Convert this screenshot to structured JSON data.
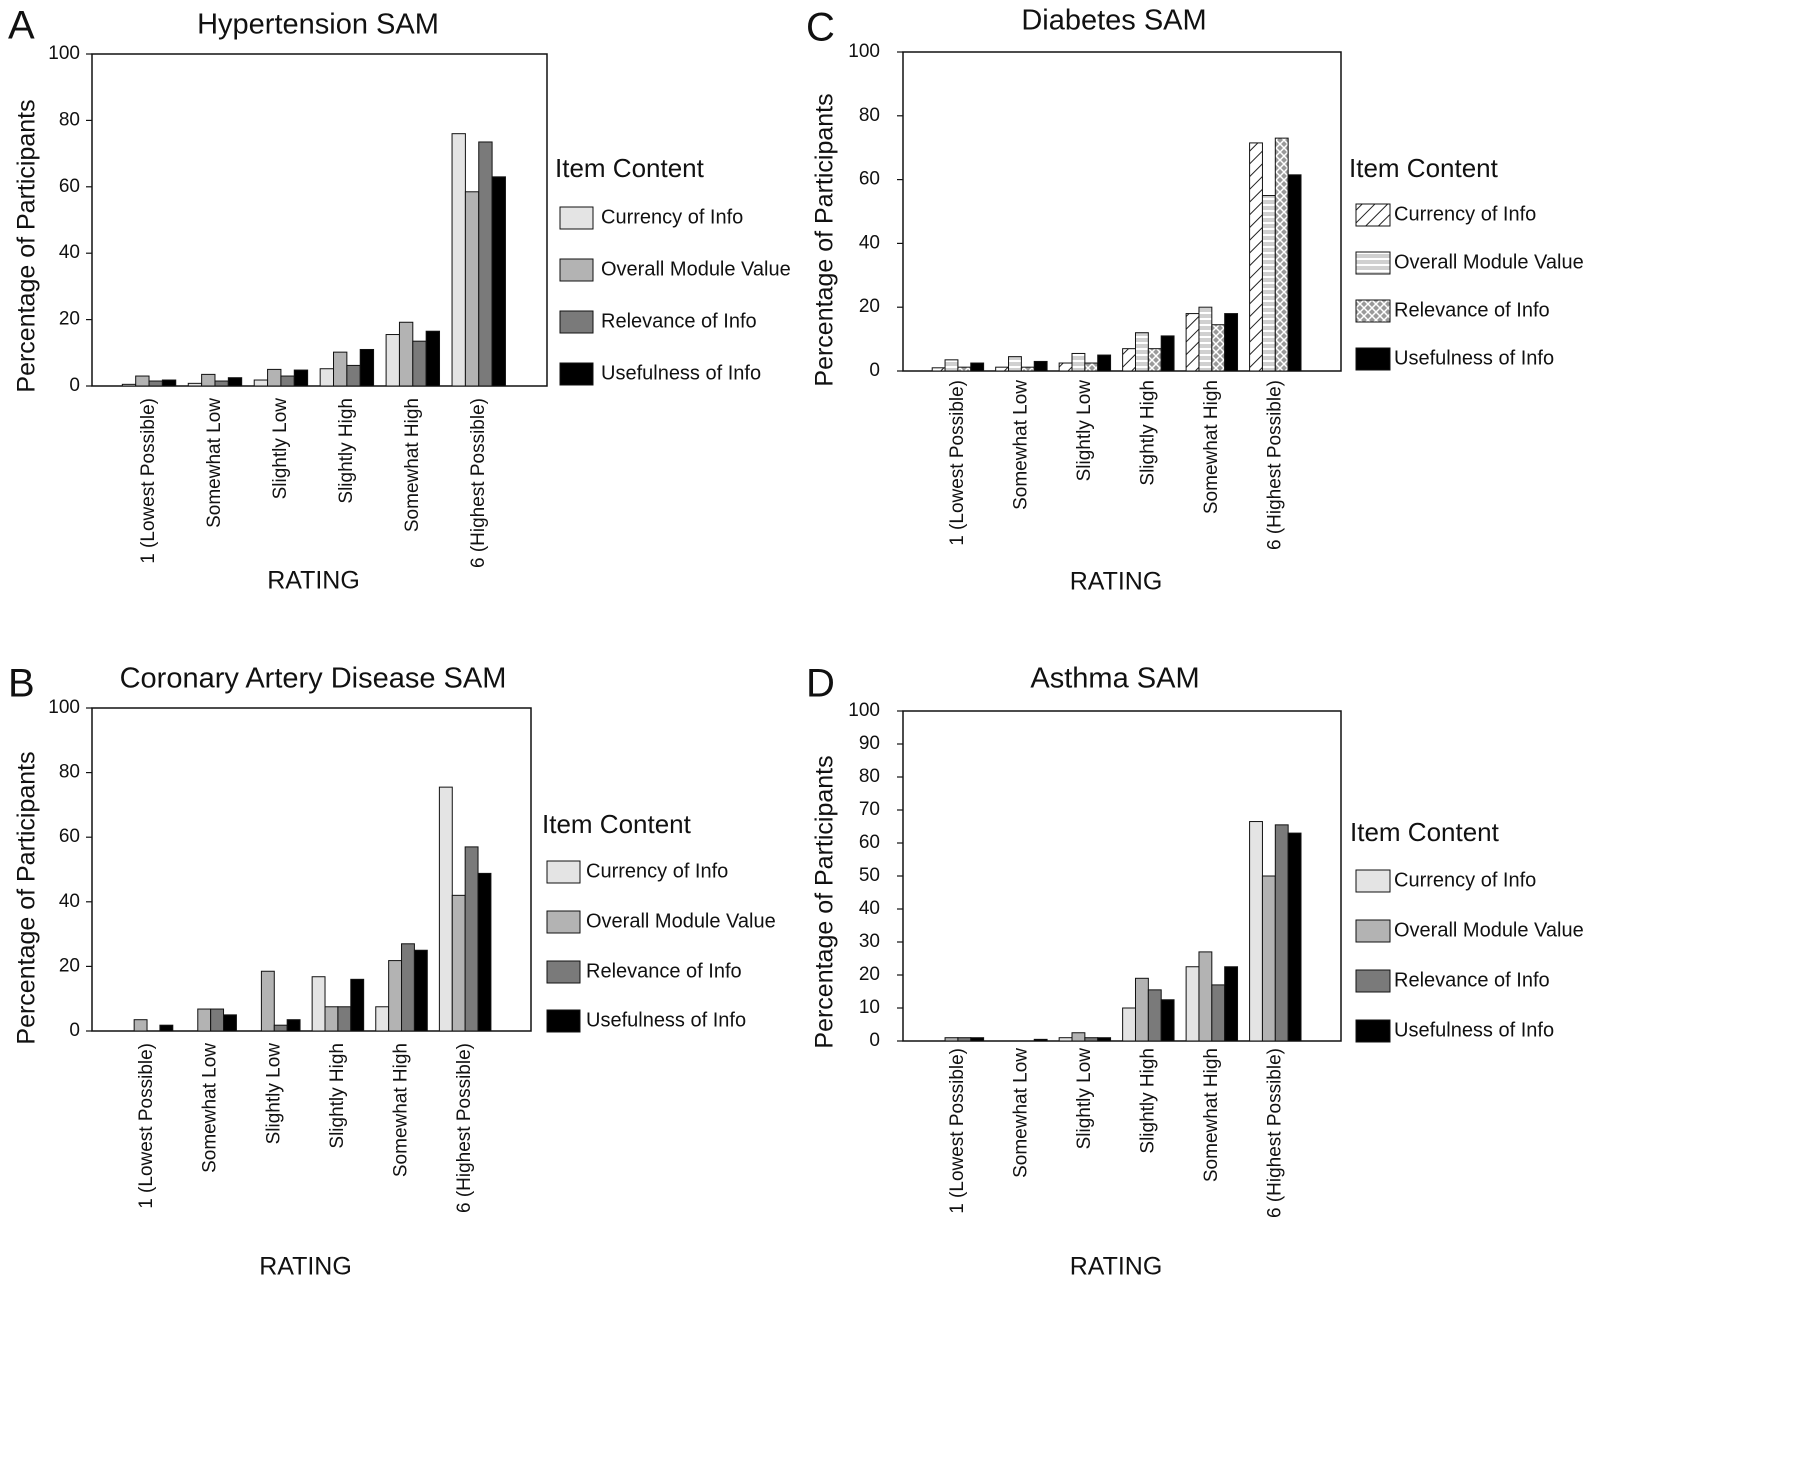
{
  "legend_title": "Item Content",
  "colors": {
    "Currency of Info": "#e4e4e4",
    "Overall Module Value": "#b3b3b3",
    "Relevance of Info": "#7a7a7a",
    "Usefulness of Info": "#000000"
  },
  "chart_data": [
    {
      "panel": "A",
      "type": "bar",
      "title": "Hypertension SAM",
      "xlabel": "RATING",
      "ylabel": "Percentage of Participants",
      "ylim": [
        0,
        100
      ],
      "yticks": [
        0,
        20,
        40,
        60,
        80,
        100
      ],
      "legend_title": "Item Content",
      "legend_position": "right",
      "grid": false,
      "categories": [
        "1 (Lowest Possible)",
        "Somewhat Low",
        "Slightly Low",
        "Slightly High",
        "Somewhat High",
        "6 (Highest Possible)"
      ],
      "series": [
        {
          "name": "Currency of Info",
          "pattern": "solid",
          "values": [
            0.5,
            0.8,
            1.8,
            5.2,
            15.5,
            76.0
          ]
        },
        {
          "name": "Overall Module Value",
          "pattern": "solid",
          "values": [
            3.0,
            3.5,
            5.0,
            10.2,
            19.2,
            58.5
          ]
        },
        {
          "name": "Relevance of Info",
          "pattern": "solid",
          "values": [
            1.5,
            1.5,
            3.0,
            6.2,
            13.5,
            73.5
          ]
        },
        {
          "name": "Usefulness of Info",
          "pattern": "solid",
          "values": [
            1.8,
            2.5,
            4.8,
            11.0,
            16.5,
            63.0
          ]
        }
      ]
    },
    {
      "panel": "B",
      "type": "bar",
      "title": "Coronary Artery Disease SAM",
      "xlabel": "RATING",
      "ylabel": "Percentage of Participants",
      "ylim": [
        0,
        100
      ],
      "yticks": [
        0,
        20,
        40,
        60,
        80,
        100
      ],
      "legend_title": "Item Content",
      "legend_position": "right",
      "grid": false,
      "categories": [
        "1 (Lowest Possible)",
        "Somewhat Low",
        "Slightly Low",
        "Slightly High",
        "Somewhat High",
        "6 (Highest Possible)"
      ],
      "series": [
        {
          "name": "Currency of Info",
          "pattern": "solid",
          "values": [
            0,
            0,
            0,
            16.8,
            7.5,
            75.5
          ]
        },
        {
          "name": "Overall Module Value",
          "pattern": "solid",
          "values": [
            3.5,
            6.8,
            18.5,
            7.5,
            21.8,
            42.0
          ]
        },
        {
          "name": "Relevance of Info",
          "pattern": "solid",
          "values": [
            0,
            6.8,
            1.8,
            7.5,
            27.0,
            57.0
          ]
        },
        {
          "name": "Usefulness of Info",
          "pattern": "solid",
          "values": [
            1.8,
            5.0,
            3.5,
            16.0,
            25.0,
            48.8
          ]
        }
      ]
    },
    {
      "panel": "C",
      "type": "bar",
      "title": "Diabetes SAM",
      "xlabel": "RATING",
      "ylabel": "Percentage of Participants",
      "ylim": [
        0,
        100
      ],
      "yticks": [
        0,
        20,
        40,
        60,
        80,
        100
      ],
      "legend_title": "Item Content",
      "legend_position": "right",
      "grid": false,
      "categories": [
        "1 (Lowest Possible)",
        "Somewhat Low",
        "Slightly Low",
        "Slightly High",
        "Somewhat High",
        "6 (Highest Possible)"
      ],
      "series": [
        {
          "name": "Currency of Info",
          "pattern": "diagonal",
          "values": [
            1.0,
            1.2,
            2.5,
            7.0,
            18.0,
            71.5
          ]
        },
        {
          "name": "Overall Module Value",
          "pattern": "horizontal",
          "values": [
            3.5,
            4.5,
            5.5,
            12.0,
            20.0,
            55.0
          ]
        },
        {
          "name": "Relevance of Info",
          "pattern": "crosshatch",
          "values": [
            1.2,
            1.2,
            2.5,
            7.0,
            14.5,
            73.0
          ]
        },
        {
          "name": "Usefulness of Info",
          "pattern": "solid",
          "values": [
            2.5,
            3.0,
            5.0,
            11.0,
            18.0,
            61.5
          ]
        }
      ]
    },
    {
      "panel": "D",
      "type": "bar",
      "title": "Asthma SAM",
      "xlabel": "RATING",
      "ylabel": "Percentage of Participants",
      "ylim": [
        0,
        100
      ],
      "yticks": [
        0,
        10,
        20,
        30,
        40,
        50,
        60,
        70,
        80,
        90,
        100
      ],
      "legend_title": "Item Content",
      "legend_position": "right",
      "grid": false,
      "categories": [
        "1 (Lowest Possible)",
        "Somewhat Low",
        "Slightly Low",
        "Slightly High",
        "Somewhat High",
        "6 (Highest Possible)"
      ],
      "series": [
        {
          "name": "Currency of Info",
          "pattern": "solid",
          "values": [
            0,
            0,
            1.0,
            10.0,
            22.5,
            66.5
          ]
        },
        {
          "name": "Overall Module Value",
          "pattern": "solid",
          "values": [
            1.0,
            0,
            2.5,
            19.0,
            27.0,
            50.0
          ]
        },
        {
          "name": "Relevance of Info",
          "pattern": "solid",
          "values": [
            1.0,
            0,
            1.0,
            15.5,
            17.0,
            65.5
          ]
        },
        {
          "name": "Usefulness of Info",
          "pattern": "solid",
          "values": [
            1.0,
            0.5,
            1.0,
            12.5,
            22.5,
            63.0
          ]
        }
      ]
    }
  ]
}
